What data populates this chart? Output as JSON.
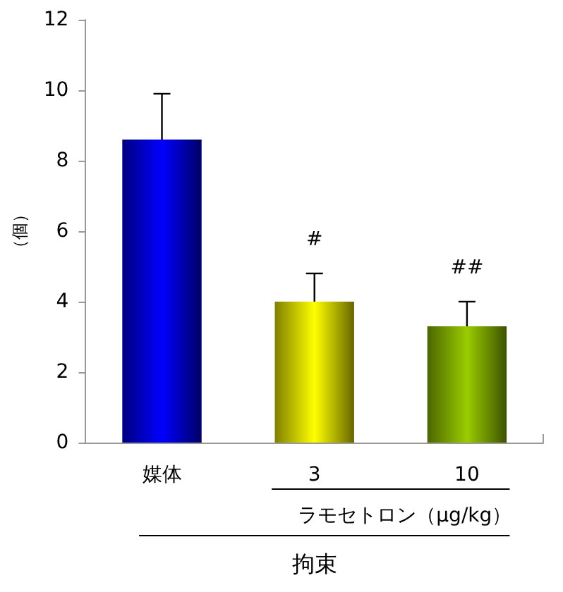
{
  "chart_data": {
    "type": "bar",
    "ylabel": "（個）",
    "xlabel": "拘束",
    "categories": [
      "媒体",
      "3",
      "10"
    ],
    "values": [
      8.6,
      4.0,
      3.3
    ],
    "colors": [
      "#0000ff",
      "#ffff00",
      "#99cc00"
    ],
    "errors": [
      [
        8.6,
        9.9
      ],
      [
        4.0,
        4.8
      ],
      [
        3.3,
        4.0
      ]
    ],
    "ylim": [
      0,
      12
    ],
    "yticks": [
      0,
      2,
      4,
      6,
      8,
      10,
      12
    ],
    "grid": false,
    "annotations": [
      "#",
      "##",
      "ラモセトロン（μg/kg）"
    ]
  }
}
